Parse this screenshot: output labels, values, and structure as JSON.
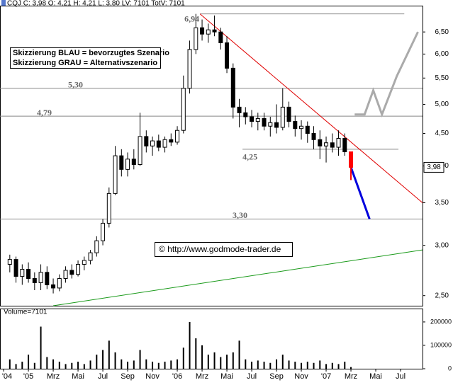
{
  "chart_data": [
    {
      "type": "candlestick",
      "title": "CQJ C: 3,98 O: 4,21 H: 4,21 L: 3,80 LV: 7101 TotV: 7101",
      "log_scale": true,
      "xlim": [
        -2.29,
        31.77
      ],
      "xticks": [
        {
          "value": -2,
          "label": "'04"
        },
        {
          "value": 0,
          "label": "'05"
        },
        {
          "value": 2,
          "label": "Mrz"
        },
        {
          "value": 4,
          "label": "Mai"
        },
        {
          "value": 6,
          "label": "Jul"
        },
        {
          "value": 8,
          "label": "Sep"
        },
        {
          "value": 10,
          "label": "Nov"
        },
        {
          "value": 12,
          "label": "'06"
        },
        {
          "value": 14,
          "label": "Mrz"
        },
        {
          "value": 16,
          "label": "Mai"
        },
        {
          "value": 18,
          "label": "Jul"
        },
        {
          "value": 20,
          "label": "Sep"
        },
        {
          "value": 22,
          "label": "Nov"
        },
        {
          "value": 24,
          "label": "'07"
        },
        {
          "value": 26,
          "label": "Mrz"
        },
        {
          "value": 28,
          "label": "Mai"
        },
        {
          "value": 30,
          "label": "Jul"
        }
      ],
      "ylim": [
        2.41,
        7.15
      ],
      "yticks": [
        {
          "value": 6.5,
          "label": "6,50"
        },
        {
          "value": 6,
          "label": "6,00"
        },
        {
          "value": 5.5,
          "label": "5,50"
        },
        {
          "value": 5,
          "label": "5,00"
        },
        {
          "value": 4.5,
          "label": "4,50"
        },
        {
          "value": 4,
          "label": "4,00"
        },
        {
          "value": 3.5,
          "label": "3,50"
        },
        {
          "value": 3,
          "label": "3,00"
        },
        {
          "value": 2.5,
          "label": "2,50"
        }
      ],
      "color": "#000000",
      "last_color": "#ff0000",
      "x": [
        -1.5,
        -1,
        -0.5,
        0,
        0.5,
        1,
        1.5,
        2,
        2.5,
        3,
        3.5,
        4,
        4.5,
        5,
        5.5,
        6,
        6.5,
        7,
        7.5,
        8,
        8.5,
        9,
        9.5,
        10,
        10.5,
        11,
        11.5,
        12,
        12.5,
        13,
        13.5,
        14,
        14.5,
        15,
        15.5,
        16,
        16.5,
        17,
        17.5,
        18,
        18.5,
        19,
        19.5,
        20,
        20.5,
        21,
        21.5,
        22,
        22.5,
        23,
        23.5,
        24,
        24.5,
        25,
        25.5,
        26
      ],
      "open": [
        2.8,
        2.85,
        2.68,
        2.75,
        2.66,
        2.62,
        2.72,
        2.6,
        2.57,
        2.66,
        2.74,
        2.7,
        2.8,
        2.84,
        2.92,
        3.05,
        3.25,
        3.62,
        4.15,
        3.95,
        4.1,
        4.02,
        4.45,
        4.3,
        4.38,
        4.28,
        4.4,
        4.36,
        4.55,
        5.3,
        6.1,
        6.6,
        6.45,
        6.55,
        6.5,
        6.25,
        5.7,
        4.95,
        4.85,
        4.78,
        4.7,
        4.75,
        4.62,
        4.68,
        4.6,
        4.95,
        4.7,
        4.58,
        4.62,
        4.5,
        4.4,
        4.3,
        4.35,
        4.28,
        4.42,
        4.21
      ],
      "high": [
        2.9,
        2.88,
        2.8,
        2.82,
        2.72,
        2.8,
        2.78,
        2.66,
        2.7,
        2.78,
        2.8,
        2.84,
        2.88,
        2.95,
        3.1,
        3.3,
        3.7,
        4.3,
        4.25,
        4.2,
        4.25,
        4.85,
        4.55,
        4.45,
        4.48,
        4.45,
        4.5,
        4.62,
        5.55,
        6.3,
        6.94,
        6.8,
        6.7,
        6.9,
        6.6,
        6.4,
        5.8,
        5.1,
        4.95,
        4.9,
        4.85,
        4.85,
        4.78,
        5.0,
        5.3,
        5.05,
        4.8,
        4.72,
        4.7,
        4.62,
        4.55,
        4.45,
        4.5,
        4.55,
        4.5,
        4.21
      ],
      "low": [
        2.72,
        2.62,
        2.6,
        2.62,
        2.55,
        2.55,
        2.56,
        2.52,
        2.54,
        2.62,
        2.66,
        2.68,
        2.74,
        2.8,
        2.88,
        3.0,
        3.2,
        3.6,
        3.85,
        3.85,
        3.95,
        4.0,
        4.2,
        4.15,
        4.22,
        4.2,
        4.3,
        4.32,
        4.5,
        5.2,
        6.0,
        6.3,
        6.25,
        6.4,
        6.1,
        5.6,
        4.75,
        4.6,
        4.65,
        4.6,
        4.55,
        4.55,
        4.45,
        4.5,
        4.55,
        4.6,
        4.45,
        4.4,
        4.35,
        4.25,
        4.1,
        4.05,
        4.2,
        4.15,
        4.15,
        3.8
      ],
      "close": [
        2.85,
        2.68,
        2.75,
        2.66,
        2.62,
        2.72,
        2.6,
        2.57,
        2.66,
        2.74,
        2.7,
        2.8,
        2.84,
        2.92,
        3.05,
        3.25,
        3.62,
        4.15,
        3.95,
        4.1,
        4.02,
        4.45,
        4.3,
        4.38,
        4.28,
        4.4,
        4.36,
        4.55,
        5.3,
        6.1,
        6.6,
        6.45,
        6.55,
        6.5,
        6.25,
        5.7,
        4.95,
        4.85,
        4.78,
        4.7,
        4.75,
        4.62,
        4.68,
        4.6,
        4.95,
        4.7,
        4.58,
        4.62,
        4.5,
        4.4,
        4.3,
        4.35,
        4.28,
        4.42,
        4.21,
        3.98
      ],
      "last_price": {
        "value": 3.98,
        "label": "3,98"
      },
      "levels": [
        {
          "value": 6.94,
          "label": "6,94",
          "from": 13.83,
          "to": 30.3
        },
        {
          "value": 5.3,
          "label": "5,30"
        },
        {
          "value": 4.79,
          "label": "4,79"
        },
        {
          "value": 4.25,
          "label": "4,25",
          "from": 17.26,
          "to": 29.83
        },
        {
          "value": 3.3,
          "label": "3,30"
        }
      ],
      "trendlines": [
        {
          "color": "#e00000",
          "x": [
            13.83,
            31.77
          ],
          "y": [
            6.94,
            3.5
          ]
        },
        {
          "color": "#1a9a1a",
          "x": [
            2.0,
            31.77
          ],
          "y": [
            2.41,
            2.95
          ]
        },
        {
          "color": "#0000dd",
          "x": [
            26.0,
            27.5
          ],
          "y": [
            3.98,
            3.3
          ]
        },
        {
          "color": "#aaaaaa",
          "x": [
            26.3,
            27.1,
            27.8,
            28.5,
            29.7,
            31.4
          ],
          "y": [
            4.82,
            4.82,
            5.26,
            4.82,
            5.54,
            6.5
          ]
        }
      ],
      "annotations": [
        "Skizzierung BLAU = bevorzugtes Szenario",
        "Skizzierung GRAU = Alternativszenario",
        "© http://www.godmode-trader.de"
      ]
    },
    {
      "type": "bar",
      "title": "Volume=7101",
      "ylim": [
        0,
        230000
      ],
      "yticks": [
        0,
        100000,
        200000
      ],
      "color": "#000000",
      "values": [
        40000,
        20000,
        30000,
        60000,
        25000,
        180000,
        50000,
        40000,
        30000,
        20000,
        25000,
        30000,
        20000,
        35000,
        60000,
        80000,
        120000,
        70000,
        40000,
        30000,
        35000,
        80000,
        40000,
        30000,
        25000,
        30000,
        35000,
        40000,
        90000,
        200000,
        130000,
        100000,
        60000,
        70000,
        50000,
        60000,
        70000,
        120000,
        40000,
        30000,
        35000,
        30000,
        25000,
        40000,
        60000,
        35000,
        30000,
        25000,
        30000,
        25000,
        35000,
        20000,
        25000,
        20000,
        30000,
        7101
      ]
    }
  ]
}
